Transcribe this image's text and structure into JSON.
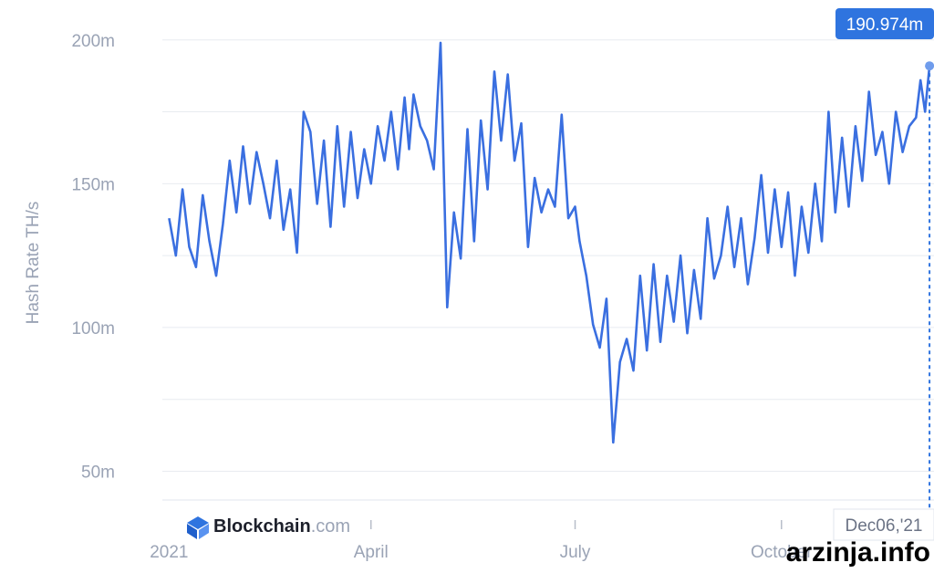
{
  "chart_data": {
    "type": "line",
    "title": "",
    "xlabel": "",
    "ylabel": "Hash Rate TH/s",
    "ylim": [
      40000000,
      205000000
    ],
    "yticks": [
      {
        "value": 50000000,
        "label": "50m"
      },
      {
        "value": 100000000,
        "label": "100m"
      },
      {
        "value": 150000000,
        "label": "150m"
      },
      {
        "value": 200000000,
        "label": "200m"
      }
    ],
    "xlim": [
      "2020-12-29",
      "2021-12-08"
    ],
    "xticks": [
      {
        "date": "2021-01-01",
        "label": "2021"
      },
      {
        "date": "2021-04-01",
        "label": "April"
      },
      {
        "date": "2021-07-01",
        "label": "July"
      },
      {
        "date": "2021-10-01",
        "label": "October"
      }
    ],
    "grid": true,
    "series": [
      {
        "color": "#3a6fe0",
        "x": [
          "2021-01-01",
          "2021-01-04",
          "2021-01-07",
          "2021-01-10",
          "2021-01-13",
          "2021-01-16",
          "2021-01-19",
          "2021-01-22",
          "2021-01-25",
          "2021-01-28",
          "2021-01-31",
          "2021-02-03",
          "2021-02-06",
          "2021-02-09",
          "2021-02-12",
          "2021-02-15",
          "2021-02-18",
          "2021-02-21",
          "2021-02-24",
          "2021-02-27",
          "2021-03-02",
          "2021-03-05",
          "2021-03-08",
          "2021-03-11",
          "2021-03-14",
          "2021-03-17",
          "2021-03-20",
          "2021-03-23",
          "2021-03-26",
          "2021-03-29",
          "2021-04-01",
          "2021-04-04",
          "2021-04-07",
          "2021-04-10",
          "2021-04-13",
          "2021-04-16",
          "2021-04-18",
          "2021-04-20",
          "2021-04-23",
          "2021-04-26",
          "2021-04-29",
          "2021-05-02",
          "2021-05-05",
          "2021-05-08",
          "2021-05-11",
          "2021-05-14",
          "2021-05-17",
          "2021-05-20",
          "2021-05-23",
          "2021-05-26",
          "2021-05-29",
          "2021-06-01",
          "2021-06-04",
          "2021-06-07",
          "2021-06-10",
          "2021-06-13",
          "2021-06-16",
          "2021-06-19",
          "2021-06-22",
          "2021-06-25",
          "2021-06-28",
          "2021-07-01",
          "2021-07-03",
          "2021-07-06",
          "2021-07-09",
          "2021-07-12",
          "2021-07-15",
          "2021-07-18",
          "2021-07-21",
          "2021-07-24",
          "2021-07-27",
          "2021-07-30",
          "2021-08-02",
          "2021-08-05",
          "2021-08-08",
          "2021-08-11",
          "2021-08-14",
          "2021-08-17",
          "2021-08-20",
          "2021-08-23",
          "2021-08-26",
          "2021-08-29",
          "2021-09-01",
          "2021-09-04",
          "2021-09-07",
          "2021-09-10",
          "2021-09-13",
          "2021-09-16",
          "2021-09-19",
          "2021-09-22",
          "2021-09-25",
          "2021-09-28",
          "2021-10-01",
          "2021-10-04",
          "2021-10-07",
          "2021-10-10",
          "2021-10-13",
          "2021-10-16",
          "2021-10-19",
          "2021-10-22",
          "2021-10-25",
          "2021-10-28",
          "2021-10-31",
          "2021-11-03",
          "2021-11-06",
          "2021-11-09",
          "2021-11-12",
          "2021-11-15",
          "2021-11-18",
          "2021-11-21",
          "2021-11-24",
          "2021-11-27",
          "2021-11-30",
          "2021-12-02",
          "2021-12-04",
          "2021-12-06"
        ],
        "y": [
          138000000,
          125000000,
          148000000,
          128000000,
          121000000,
          146000000,
          130000000,
          118000000,
          136000000,
          158000000,
          140000000,
          163000000,
          143000000,
          161000000,
          150000000,
          138000000,
          158000000,
          134000000,
          148000000,
          126000000,
          175000000,
          168000000,
          143000000,
          165000000,
          135000000,
          170000000,
          142000000,
          168000000,
          145000000,
          162000000,
          150000000,
          170000000,
          158000000,
          175000000,
          155000000,
          180000000,
          162000000,
          181000000,
          170000000,
          165000000,
          155000000,
          199000000,
          107000000,
          140000000,
          124000000,
          169000000,
          130000000,
          172000000,
          148000000,
          189000000,
          165000000,
          188000000,
          158000000,
          171000000,
          128000000,
          152000000,
          140000000,
          148000000,
          142000000,
          174000000,
          138000000,
          142000000,
          130000000,
          118000000,
          101000000,
          93000000,
          110000000,
          60000000,
          88000000,
          96000000,
          85000000,
          118000000,
          92000000,
          122000000,
          95000000,
          118000000,
          102000000,
          125000000,
          98000000,
          120000000,
          103000000,
          138000000,
          117000000,
          125000000,
          142000000,
          121000000,
          138000000,
          115000000,
          131000000,
          153000000,
          126000000,
          148000000,
          128000000,
          147000000,
          118000000,
          142000000,
          126000000,
          150000000,
          130000000,
          175000000,
          140000000,
          166000000,
          142000000,
          170000000,
          151000000,
          182000000,
          160000000,
          168000000,
          150000000,
          175000000,
          161000000,
          170000000,
          173000000,
          186000000,
          175000000,
          190974000
        ]
      }
    ],
    "tooltip": {
      "value_label": "190.974m",
      "date_label": "Dec06,'21"
    }
  },
  "logo": {
    "name": "Blockchain",
    "suffix": ".com"
  },
  "watermark": "arzinja.info",
  "colors": {
    "line": "#3a6fe0",
    "tooltip_bg": "#2f74df",
    "grid": "#e6e9ef",
    "text_muted": "#9aa3b5"
  }
}
